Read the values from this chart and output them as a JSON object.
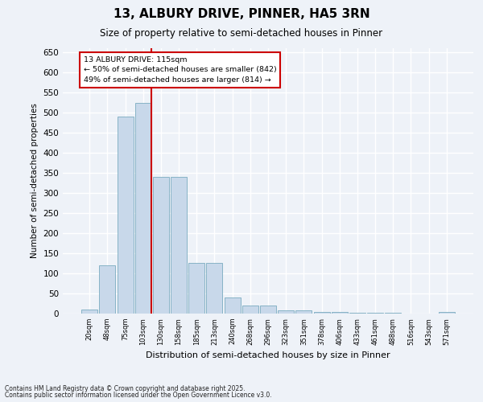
{
  "title": "13, ALBURY DRIVE, PINNER, HA5 3RN",
  "subtitle": "Size of property relative to semi-detached houses in Pinner",
  "xlabel": "Distribution of semi-detached houses by size in Pinner",
  "ylabel": "Number of semi-detached properties",
  "bar_color": "#c8d8ea",
  "bar_edge_color": "#7aabbf",
  "background_color": "#eef2f8",
  "grid_color": "#ffffff",
  "categories": [
    "20sqm",
    "48sqm",
    "75sqm",
    "103sqm",
    "130sqm",
    "158sqm",
    "185sqm",
    "213sqm",
    "240sqm",
    "268sqm",
    "296sqm",
    "323sqm",
    "351sqm",
    "378sqm",
    "406sqm",
    "433sqm",
    "461sqm",
    "488sqm",
    "516sqm",
    "543sqm",
    "571sqm"
  ],
  "values": [
    10,
    120,
    490,
    525,
    340,
    340,
    127,
    127,
    40,
    20,
    20,
    8,
    8,
    5,
    5,
    3,
    2,
    2,
    1,
    1,
    5
  ],
  "property_size_label": "13 ALBURY DRIVE: 115sqm",
  "pct_smaller": 50,
  "count_smaller": 842,
  "pct_larger": 49,
  "count_larger": 814,
  "vline_color": "#cc0000",
  "vline_position": 3.45,
  "annotation_box_color": "#cc0000",
  "ylim": [
    0,
    660
  ],
  "yticks": [
    0,
    50,
    100,
    150,
    200,
    250,
    300,
    350,
    400,
    450,
    500,
    550,
    600,
    650
  ],
  "footnote1": "Contains HM Land Registry data © Crown copyright and database right 2025.",
  "footnote2": "Contains public sector information licensed under the Open Government Licence v3.0."
}
